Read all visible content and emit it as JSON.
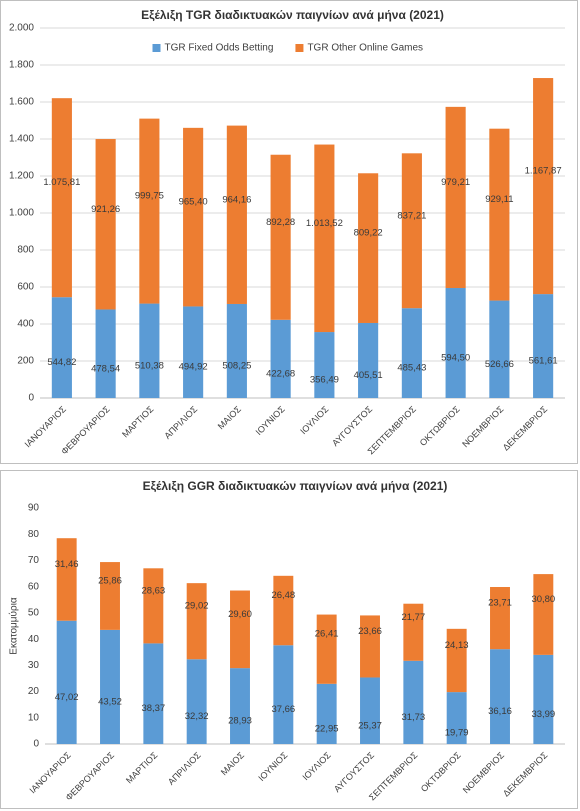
{
  "chart_data": [
    {
      "type": "bar",
      "stacked": true,
      "title": "Εξέλιξη TGR διαδικτυακών παιγνίων ανά μήνα (2021)",
      "categories": [
        "ΙΑΝΟΥΑΡΙΟΣ",
        "ΦΕΒΡΟΥΑΡΙΟΣ",
        "ΜΑΡΤΙΟΣ",
        "ΑΠΡΙΛΙΟΣ",
        "ΜΑΙΟΣ",
        "ΙΟΥΝΙΟΣ",
        "ΙΟΥΛΙΟΣ",
        "ΑΥΓΟΥΣΤΟΣ",
        "ΣΕΠΤΕΜΒΡΙΟΣ",
        "ΟΚΤΩΒΡΙΟΣ",
        "ΝΟΕΜΒΡΙΟΣ",
        "ΔΕΚΕΜΒΡΙΟΣ"
      ],
      "series": [
        {
          "name": "TGR Fixed Odds Betting",
          "color": "#5b9bd5",
          "values": [
            544.82,
            478.54,
            510.38,
            494.92,
            508.25,
            422.68,
            356.49,
            405.51,
            485.43,
            594.5,
            526.66,
            561.61
          ],
          "value_labels": [
            "544,82",
            "478,54",
            "510,38",
            "494,92",
            "508,25",
            "422,68",
            "356,49",
            "405,51",
            "485,43",
            "594,50",
            "526,66",
            "561,61"
          ]
        },
        {
          "name": "TGR Other Online Games",
          "color": "#ed7d31",
          "values": [
            1075.81,
            921.26,
            999.75,
            965.4,
            964.16,
            892.28,
            1013.52,
            809.22,
            837.21,
            979.21,
            929.11,
            1167.87
          ],
          "value_labels": [
            "1.075,81",
            "921,26",
            "999,75",
            "965,40",
            "964,16",
            "892,28",
            "1.013,52",
            "809,22",
            "837,21",
            "979,21",
            "929,11",
            "1.167,87"
          ]
        }
      ],
      "ylim": [
        0,
        2000
      ],
      "yticks": [
        0,
        200,
        400,
        600,
        800,
        {
          "value": 1000,
          "label": "1.000"
        },
        {
          "value": 1200,
          "label": "1.200"
        },
        {
          "value": 1400,
          "label": "1.400"
        },
        {
          "value": 1600,
          "label": "1.600"
        },
        {
          "value": 1800,
          "label": "1.800"
        },
        {
          "value": 2000,
          "label": "2.000"
        }
      ],
      "grid": true,
      "legend": "top"
    },
    {
      "type": "bar",
      "stacked": true,
      "title": "Εξέλιξη GGR διαδικτυακών παιγνίων ανά μήνα (2021)",
      "y_label": "Εκατομμύρια",
      "categories": [
        "ΙΑΝΟΥΑΡΙΟΣ",
        "ΦΕΒΡΟΥΑΡΙΟΣ",
        "ΜΑΡΤΙΟΣ",
        "ΑΠΡΙΛΙΟΣ",
        "ΜΑΙΟΣ",
        "ΙΟΥΝΙΟΣ",
        "ΙΟΥΛΙΟΣ",
        "ΑΥΓΟΥΣΤΟΣ",
        "ΣΕΠΤΕΜΒΡΙΟΣ",
        "ΟΚΤΩΒΡΙΟΣ",
        "ΝΟΕΜΒΡΙΟΣ",
        "ΔΕΚΕΜΒΡΙΟΣ"
      ],
      "series": [
        {
          "color": "#5b9bd5",
          "values": [
            47.02,
            43.52,
            38.37,
            32.32,
            28.93,
            37.66,
            22.95,
            25.37,
            31.73,
            19.79,
            36.16,
            33.99
          ],
          "value_labels": [
            "47,02",
            "43,52",
            "38,37",
            "32,32",
            "28,93",
            "37,66",
            "22,95",
            "25,37",
            "31,73",
            "19,79",
            "36,16",
            "33,99"
          ]
        },
        {
          "color": "#ed7d31",
          "values": [
            31.46,
            25.86,
            28.63,
            29.02,
            29.6,
            26.48,
            26.41,
            23.66,
            21.77,
            24.13,
            23.71,
            30.8
          ],
          "value_labels": [
            "31,46",
            "25,86",
            "28,63",
            "29,02",
            "29,60",
            "26,48",
            "26,41",
            "23,66",
            "21,77",
            "24,13",
            "23,71",
            "30,80"
          ]
        }
      ],
      "ylim": [
        0,
        90
      ],
      "yticks": [
        0,
        10,
        20,
        30,
        40,
        50,
        60,
        70,
        80,
        90
      ],
      "grid": false
    }
  ]
}
